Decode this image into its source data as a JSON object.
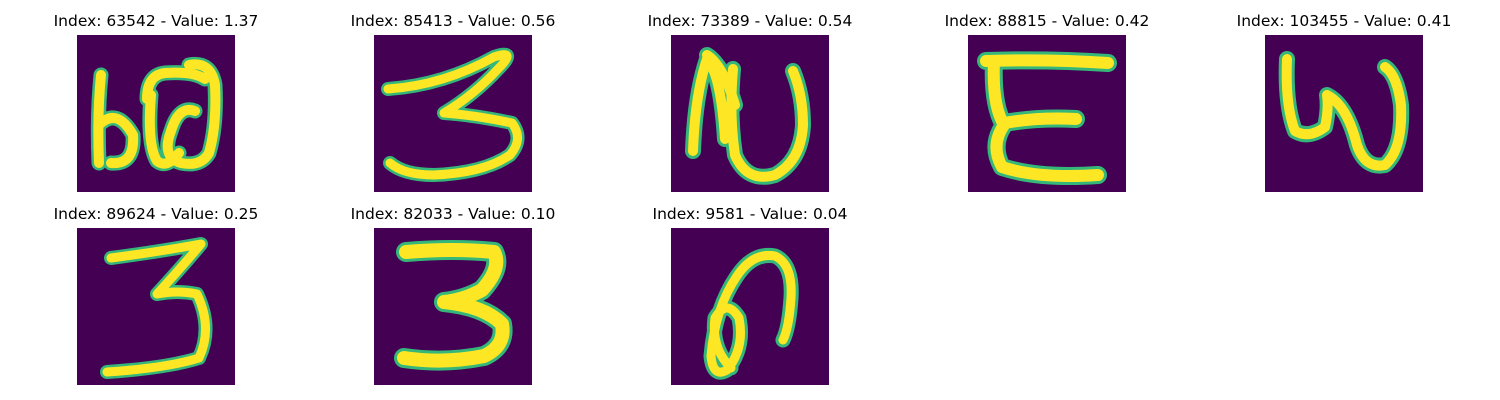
{
  "panels": [
    {
      "title": "Index: 63542 - Value: 1.37",
      "glyph": "b0",
      "colors": {
        "background": "#440154",
        "stroke": "#fde725",
        "edge": "#35b779"
      }
    },
    {
      "title": "Index: 85413 - Value: 0.56",
      "glyph": "3-wide",
      "colors": {
        "background": "#440154",
        "stroke": "#fde725",
        "edge": "#35b779"
      }
    },
    {
      "title": "Index: 73389 - Value: 0.54",
      "glyph": "N",
      "colors": {
        "background": "#440154",
        "stroke": "#fde725",
        "edge": "#35b779"
      }
    },
    {
      "title": "Index: 88815 - Value: 0.42",
      "glyph": "E",
      "colors": {
        "background": "#440154",
        "stroke": "#fde725",
        "edge": "#35b779"
      }
    },
    {
      "title": "Index: 103455 - Value: 0.41",
      "glyph": "W",
      "colors": {
        "background": "#440154",
        "stroke": "#fde725",
        "edge": "#35b779"
      }
    },
    {
      "title": "Index: 89624 - Value: 0.25",
      "glyph": "3-thin",
      "colors": {
        "background": "#440154",
        "stroke": "#fde725",
        "edge": "#35b779"
      }
    },
    {
      "title": "Index: 82033 - Value: 0.10",
      "glyph": "3-bold",
      "colors": {
        "background": "#440154",
        "stroke": "#fde725",
        "edge": "#35b779"
      }
    },
    {
      "title": "Index: 9581 - Value: 0.04",
      "glyph": "loop",
      "colors": {
        "background": "#440154",
        "stroke": "#fde725",
        "edge": "#35b779"
      }
    }
  ]
}
